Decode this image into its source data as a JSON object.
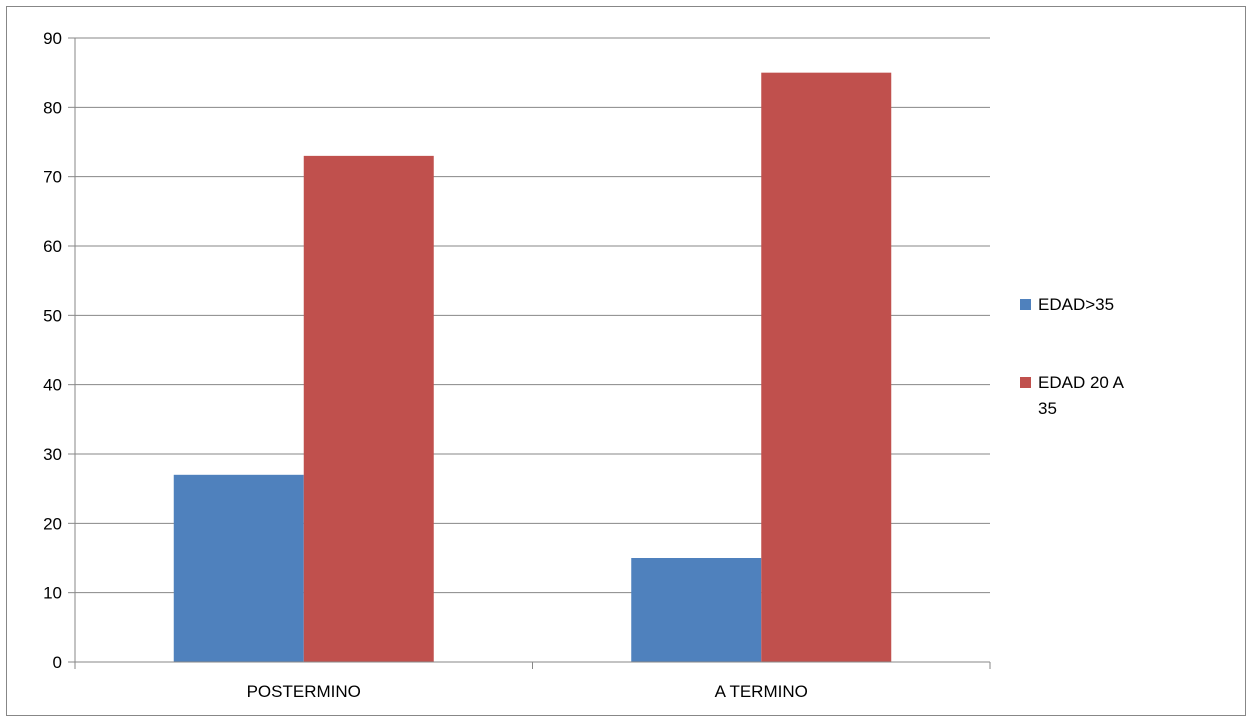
{
  "chart_data": {
    "type": "bar",
    "title": "",
    "xlabel": "",
    "ylabel": "",
    "categories": [
      "POSTERMINO",
      "A TERMINO"
    ],
    "series": [
      {
        "name": "EDAD>35",
        "values": [
          27,
          15
        ],
        "color": "#4f81bd"
      },
      {
        "name": "EDAD 20 A 35",
        "values": [
          73,
          85
        ],
        "color": "#c0504d"
      }
    ],
    "ylim": [
      0,
      90
    ],
    "yticks": [
      0,
      10,
      20,
      30,
      40,
      50,
      60,
      70,
      80,
      90
    ],
    "grid": true,
    "legend_position": "right"
  }
}
